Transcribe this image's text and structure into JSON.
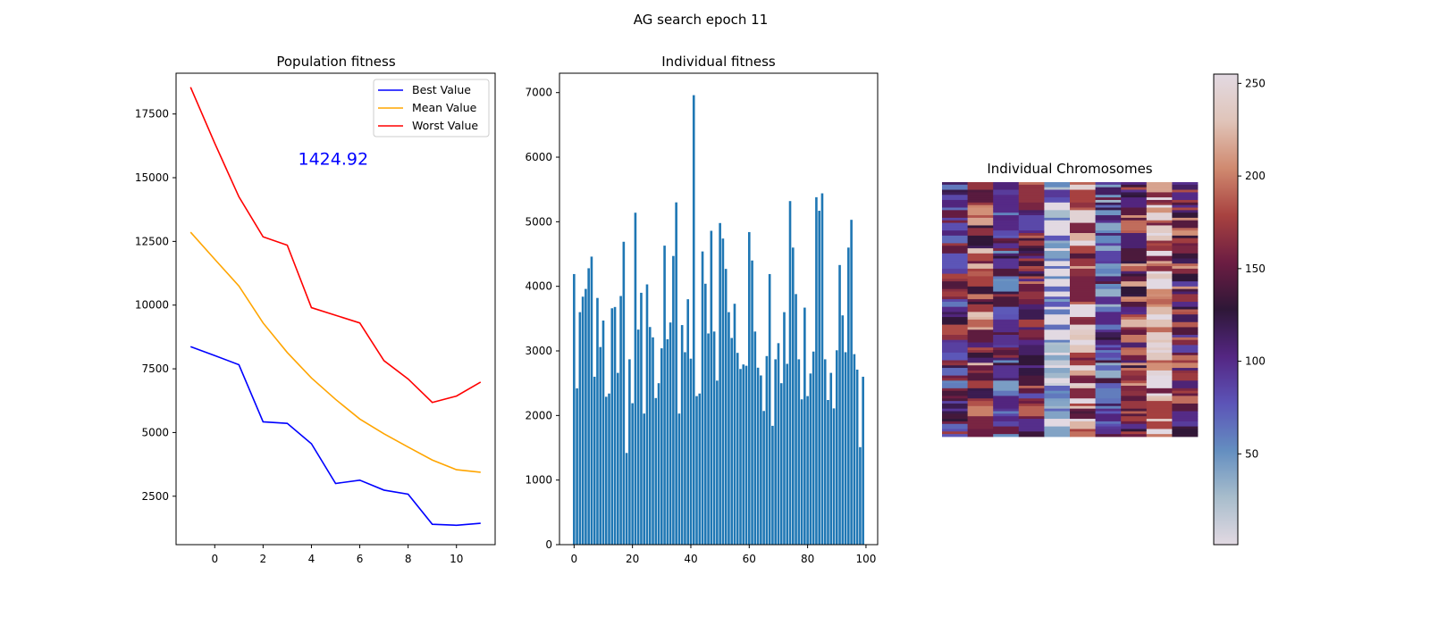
{
  "suptitle": "AG search epoch 11",
  "chart_data": [
    {
      "type": "line",
      "title": "Population fitness",
      "xlabel": "",
      "ylabel": "",
      "x": [
        -1,
        0,
        1,
        2,
        3,
        4,
        5,
        6,
        7,
        8,
        9,
        10,
        11
      ],
      "xlim": [
        -1.6,
        11.6
      ],
      "ylim": [
        600,
        19100
      ],
      "xticks": [
        0,
        2,
        4,
        6,
        8,
        10
      ],
      "yticks": [
        2500,
        5000,
        7500,
        10000,
        12500,
        15000,
        17500
      ],
      "annotation": {
        "text": "1424.92",
        "x": 4.9,
        "y": 15500,
        "color": "#0000ff"
      },
      "legend": "top-right",
      "series": [
        {
          "name": "Best Value",
          "color": "#0000ff",
          "values": [
            8370,
            8020,
            7660,
            5420,
            5360,
            4560,
            3000,
            3130,
            2740,
            2580,
            1400,
            1360,
            1440
          ]
        },
        {
          "name": "Mean Value",
          "color": "#ffa500",
          "values": [
            12860,
            11800,
            10750,
            9300,
            8140,
            7140,
            6300,
            5530,
            4950,
            4430,
            3920,
            3540,
            3440
          ]
        },
        {
          "name": "Worst Value",
          "color": "#ff0000",
          "values": [
            18550,
            16350,
            14250,
            12680,
            12350,
            9900,
            9600,
            9300,
            7820,
            7100,
            6180,
            6430,
            6980
          ]
        }
      ]
    },
    {
      "type": "bar",
      "title": "Individual fitness",
      "xlabel": "",
      "ylabel": "",
      "color": "#1f77b4",
      "xlim": [
        -5,
        104
      ],
      "ylim": [
        0,
        7300
      ],
      "xticks": [
        0,
        20,
        40,
        60,
        80,
        100
      ],
      "yticks": [
        0,
        1000,
        2000,
        3000,
        4000,
        5000,
        6000,
        7000
      ],
      "values": [
        4190,
        2420,
        3600,
        3840,
        3960,
        4280,
        4460,
        2600,
        3820,
        3060,
        3470,
        2290,
        2340,
        3660,
        3680,
        2660,
        3850,
        4690,
        1420,
        2870,
        2190,
        5140,
        3330,
        3900,
        2030,
        4030,
        3370,
        3210,
        2270,
        2500,
        3040,
        4630,
        3180,
        3440,
        4470,
        5300,
        2030,
        3400,
        2980,
        3800,
        2880,
        6960,
        2300,
        2340,
        4540,
        4040,
        3270,
        4860,
        3300,
        2540,
        4980,
        4740,
        4270,
        3600,
        3200,
        3730,
        2970,
        2720,
        2790,
        2770,
        4840,
        4400,
        3300,
        2740,
        2620,
        2070,
        2920,
        4190,
        1840,
        2870,
        3120,
        2500,
        3600,
        2800,
        5320,
        4600,
        3880,
        2870,
        2250,
        3670,
        2300,
        2650,
        2990,
        5380,
        5170,
        5440,
        2870,
        2240,
        2660,
        2110,
        3010,
        4330,
        3550,
        2980,
        4600,
        5030,
        2950,
        2710,
        1510,
        2600
      ]
    },
    {
      "type": "heatmap",
      "title": "Individual Chromosomes",
      "colormap": "twilight",
      "clim": [
        1,
        255
      ],
      "colorbar_ticks": [
        50,
        100,
        150,
        200,
        250
      ],
      "rows": 100,
      "cols": 10,
      "column_base_values": [
        120,
        170,
        105,
        140,
        30,
        200,
        90,
        160,
        215,
        150
      ]
    }
  ]
}
